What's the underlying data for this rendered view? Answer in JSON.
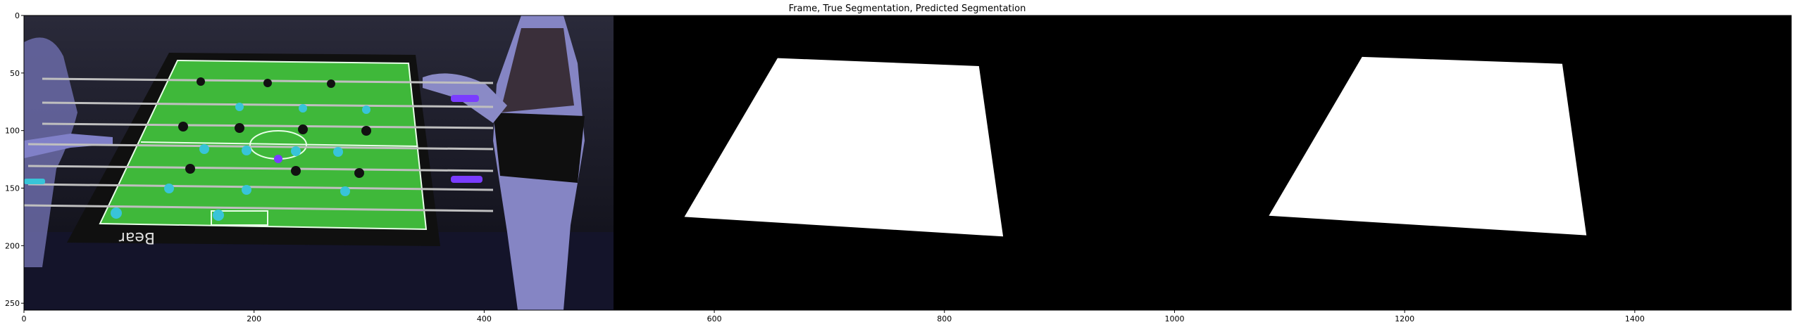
{
  "figure": {
    "title": "Frame, True Segmentation, Predicted Segmentation",
    "panels": [
      {
        "name": "Frame"
      },
      {
        "name": "True Segmentation"
      },
      {
        "name": "Predicted Segmentation"
      }
    ]
  },
  "chart_data": {
    "type": "image",
    "title": "Frame, True Segmentation, Predicted Segmentation",
    "xlim": [
      0,
      1536
    ],
    "ylim": [
      256,
      0
    ],
    "x_ticks": [
      0,
      200,
      400,
      600,
      800,
      1000,
      1200,
      1400
    ],
    "y_ticks": [
      0,
      50,
      100,
      150,
      200,
      250
    ],
    "true_mask_quad": [
      [
        655,
        37
      ],
      [
        830,
        44
      ],
      [
        851,
        192
      ],
      [
        574,
        175
      ]
    ],
    "pred_mask_quad": [
      [
        1163,
        36
      ],
      [
        1337,
        42
      ],
      [
        1358,
        191
      ],
      [
        1082,
        174
      ]
    ]
  },
  "colors": {
    "background": "#000000",
    "mask": "#ffffff",
    "table_green": "#3fb83a",
    "player_cyan": "#38c4d8",
    "player_black": "#111111",
    "ball_purple": "#7a3cff",
    "person_blue": "#8080c8"
  }
}
